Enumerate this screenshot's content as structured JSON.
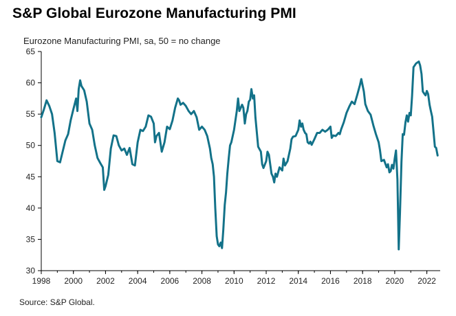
{
  "header": {
    "title": "S&P Global Eurozone Manufacturing PMI",
    "subtitle": "Eurozone Manufacturing PMI, sa, 50 = no change"
  },
  "footer": {
    "source": "Source: S&P Global."
  },
  "colors": {
    "line": "#137289",
    "axis": "#000000"
  },
  "chart_data": {
    "type": "line",
    "title": "S&P Global Eurozone Manufacturing PMI",
    "subtitle": "Eurozone Manufacturing PMI, sa, 50 = no change",
    "xlabel": "",
    "ylabel": "",
    "xlim": [
      1998.0,
      2022.83
    ],
    "ylim": [
      30,
      65
    ],
    "yticks": [
      30,
      35,
      40,
      45,
      50,
      55,
      60,
      65
    ],
    "xticks": [
      "1998",
      "2000",
      "2002",
      "2004",
      "2006",
      "2008",
      "2010",
      "2012",
      "2014",
      "2016",
      "2018",
      "2020",
      "2022"
    ],
    "grid": false,
    "legend": "none",
    "series": [
      {
        "points": [
          [
            1998.0,
            54.5
          ],
          [
            1998.17,
            55.8
          ],
          [
            1998.33,
            57.2
          ],
          [
            1998.5,
            56.3
          ],
          [
            1998.67,
            55.0
          ],
          [
            1998.83,
            52.0
          ],
          [
            1999.0,
            47.5
          ],
          [
            1999.17,
            47.3
          ],
          [
            1999.33,
            49.0
          ],
          [
            1999.5,
            50.8
          ],
          [
            1999.67,
            51.8
          ],
          [
            1999.83,
            54.0
          ],
          [
            2000.0,
            55.8
          ],
          [
            2000.17,
            57.5
          ],
          [
            2000.25,
            55.5
          ],
          [
            2000.33,
            59.0
          ],
          [
            2000.42,
            60.4
          ],
          [
            2000.5,
            59.5
          ],
          [
            2000.67,
            58.8
          ],
          [
            2000.83,
            57.0
          ],
          [
            2001.0,
            53.5
          ],
          [
            2001.17,
            52.5
          ],
          [
            2001.33,
            50.0
          ],
          [
            2001.5,
            48.0
          ],
          [
            2001.67,
            47.2
          ],
          [
            2001.83,
            46.5
          ],
          [
            2001.92,
            42.9
          ],
          [
            2002.0,
            43.5
          ],
          [
            2002.17,
            45.3
          ],
          [
            2002.33,
            49.5
          ],
          [
            2002.5,
            51.6
          ],
          [
            2002.67,
            51.5
          ],
          [
            2002.83,
            50.0
          ],
          [
            2003.0,
            49.2
          ],
          [
            2003.17,
            49.5
          ],
          [
            2003.33,
            48.5
          ],
          [
            2003.5,
            49.6
          ],
          [
            2003.67,
            47.0
          ],
          [
            2003.83,
            46.8
          ],
          [
            2004.0,
            50.5
          ],
          [
            2004.17,
            52.5
          ],
          [
            2004.33,
            52.3
          ],
          [
            2004.5,
            53.0
          ],
          [
            2004.67,
            54.8
          ],
          [
            2004.83,
            54.6
          ],
          [
            2005.0,
            53.5
          ],
          [
            2005.08,
            50.5
          ],
          [
            2005.17,
            51.5
          ],
          [
            2005.33,
            52.0
          ],
          [
            2005.5,
            49.0
          ],
          [
            2005.67,
            50.5
          ],
          [
            2005.83,
            53.0
          ],
          [
            2006.0,
            52.6
          ],
          [
            2006.17,
            54.0
          ],
          [
            2006.33,
            56.0
          ],
          [
            2006.5,
            57.5
          ],
          [
            2006.58,
            57.2
          ],
          [
            2006.67,
            56.5
          ],
          [
            2006.83,
            56.8
          ],
          [
            2007.0,
            56.3
          ],
          [
            2007.17,
            55.5
          ],
          [
            2007.33,
            55.0
          ],
          [
            2007.5,
            55.5
          ],
          [
            2007.67,
            54.5
          ],
          [
            2007.83,
            52.5
          ],
          [
            2008.0,
            53.0
          ],
          [
            2008.17,
            52.5
          ],
          [
            2008.33,
            51.5
          ],
          [
            2008.5,
            49.5
          ],
          [
            2008.58,
            48.0
          ],
          [
            2008.67,
            47.0
          ],
          [
            2008.75,
            45.0
          ],
          [
            2008.83,
            40.0
          ],
          [
            2008.92,
            35.5
          ],
          [
            2009.0,
            34.2
          ],
          [
            2009.08,
            33.9
          ],
          [
            2009.17,
            34.5
          ],
          [
            2009.25,
            33.6
          ],
          [
            2009.33,
            36.5
          ],
          [
            2009.42,
            40.5
          ],
          [
            2009.5,
            42.5
          ],
          [
            2009.58,
            45.5
          ],
          [
            2009.67,
            48.0
          ],
          [
            2009.75,
            50.0
          ],
          [
            2009.83,
            50.5
          ],
          [
            2010.0,
            52.5
          ],
          [
            2010.17,
            55.5
          ],
          [
            2010.25,
            57.5
          ],
          [
            2010.33,
            55.5
          ],
          [
            2010.5,
            56.5
          ],
          [
            2010.58,
            56.0
          ],
          [
            2010.67,
            53.5
          ],
          [
            2010.75,
            55.0
          ],
          [
            2010.83,
            55.5
          ],
          [
            2010.92,
            57.0
          ],
          [
            2011.0,
            57.3
          ],
          [
            2011.08,
            59.0
          ],
          [
            2011.17,
            57.5
          ],
          [
            2011.25,
            58.0
          ],
          [
            2011.33,
            54.5
          ],
          [
            2011.42,
            52.0
          ],
          [
            2011.5,
            49.8
          ],
          [
            2011.67,
            49.0
          ],
          [
            2011.75,
            47.0
          ],
          [
            2011.83,
            46.4
          ],
          [
            2012.0,
            47.5
          ],
          [
            2012.08,
            49.0
          ],
          [
            2012.17,
            48.5
          ],
          [
            2012.33,
            45.5
          ],
          [
            2012.42,
            45.0
          ],
          [
            2012.5,
            44.1
          ],
          [
            2012.58,
            45.5
          ],
          [
            2012.67,
            45.0
          ],
          [
            2012.83,
            46.5
          ],
          [
            2013.0,
            46.0
          ],
          [
            2013.08,
            47.9
          ],
          [
            2013.17,
            46.8
          ],
          [
            2013.33,
            47.5
          ],
          [
            2013.5,
            49.5
          ],
          [
            2013.58,
            51.0
          ],
          [
            2013.67,
            51.4
          ],
          [
            2013.83,
            51.5
          ],
          [
            2014.0,
            52.5
          ],
          [
            2014.08,
            54.0
          ],
          [
            2014.17,
            53.0
          ],
          [
            2014.25,
            53.5
          ],
          [
            2014.33,
            52.5
          ],
          [
            2014.42,
            52.0
          ],
          [
            2014.5,
            51.8
          ],
          [
            2014.58,
            50.5
          ],
          [
            2014.67,
            50.3
          ],
          [
            2014.75,
            50.6
          ],
          [
            2014.83,
            50.1
          ],
          [
            2015.0,
            51.0
          ],
          [
            2015.17,
            52.0
          ],
          [
            2015.33,
            52.0
          ],
          [
            2015.5,
            52.5
          ],
          [
            2015.67,
            52.2
          ],
          [
            2015.83,
            52.5
          ],
          [
            2016.0,
            53.0
          ],
          [
            2016.08,
            51.2
          ],
          [
            2016.17,
            51.6
          ],
          [
            2016.33,
            51.5
          ],
          [
            2016.5,
            52.0
          ],
          [
            2016.58,
            51.8
          ],
          [
            2016.67,
            52.6
          ],
          [
            2016.83,
            53.7
          ],
          [
            2017.0,
            55.2
          ],
          [
            2017.17,
            56.2
          ],
          [
            2017.33,
            57.0
          ],
          [
            2017.5,
            56.6
          ],
          [
            2017.67,
            58.1
          ],
          [
            2017.83,
            59.6
          ],
          [
            2017.92,
            60.6
          ],
          [
            2018.0,
            59.6
          ],
          [
            2018.08,
            58.6
          ],
          [
            2018.17,
            56.6
          ],
          [
            2018.33,
            55.5
          ],
          [
            2018.5,
            54.9
          ],
          [
            2018.67,
            53.2
          ],
          [
            2018.83,
            51.8
          ],
          [
            2019.0,
            50.5
          ],
          [
            2019.08,
            49.3
          ],
          [
            2019.17,
            47.5
          ],
          [
            2019.33,
            47.7
          ],
          [
            2019.5,
            46.5
          ],
          [
            2019.58,
            47.0
          ],
          [
            2019.67,
            45.7
          ],
          [
            2019.75,
            45.9
          ],
          [
            2019.83,
            46.9
          ],
          [
            2019.92,
            46.3
          ],
          [
            2020.0,
            47.9
          ],
          [
            2020.08,
            49.2
          ],
          [
            2020.17,
            44.5
          ],
          [
            2020.25,
            33.4
          ],
          [
            2020.33,
            39.4
          ],
          [
            2020.42,
            47.4
          ],
          [
            2020.5,
            51.8
          ],
          [
            2020.58,
            51.7
          ],
          [
            2020.67,
            53.7
          ],
          [
            2020.75,
            54.8
          ],
          [
            2020.83,
            53.8
          ],
          [
            2020.92,
            55.2
          ],
          [
            2021.0,
            54.8
          ],
          [
            2021.08,
            57.9
          ],
          [
            2021.17,
            62.5
          ],
          [
            2021.33,
            63.1
          ],
          [
            2021.5,
            63.4
          ],
          [
            2021.58,
            62.8
          ],
          [
            2021.67,
            61.4
          ],
          [
            2021.75,
            58.6
          ],
          [
            2021.83,
            58.3
          ],
          [
            2021.92,
            58.0
          ],
          [
            2022.0,
            58.7
          ],
          [
            2022.08,
            58.2
          ],
          [
            2022.17,
            56.5
          ],
          [
            2022.25,
            55.5
          ],
          [
            2022.33,
            54.6
          ],
          [
            2022.42,
            52.1
          ],
          [
            2022.5,
            49.8
          ],
          [
            2022.58,
            49.6
          ],
          [
            2022.67,
            48.4
          ]
        ]
      }
    ]
  }
}
